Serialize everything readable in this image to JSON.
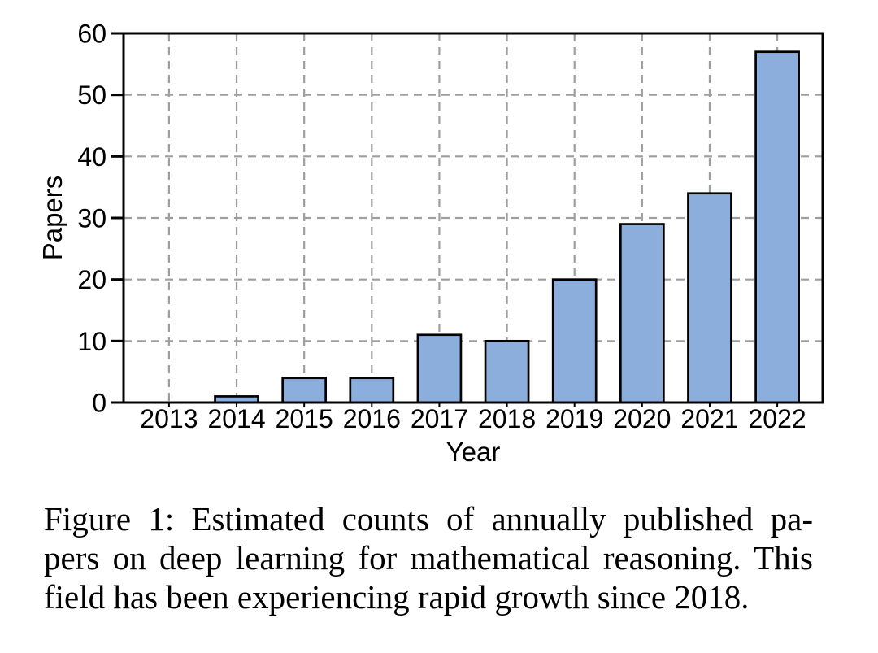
{
  "chart_data": {
    "type": "bar",
    "title": "",
    "categories": [
      "2013",
      "2014",
      "2015",
      "2016",
      "2017",
      "2018",
      "2019",
      "2020",
      "2021",
      "2022"
    ],
    "values": [
      0,
      1,
      4,
      4,
      11,
      10,
      20,
      29,
      34,
      57
    ],
    "xlabel": "Year",
    "ylabel": "Papers",
    "ylim": [
      0,
      60
    ],
    "yticks": [
      0,
      10,
      20,
      30,
      40,
      50,
      60
    ],
    "grid": "dashed gray gridlines, horizontal and vertical, drawn behind bars",
    "legend": "none",
    "bar_color": "#8CAEDC",
    "bar_edge_color": "#000000",
    "axis_color": "#000000",
    "grid_color": "#9E9E9E"
  },
  "figure": {
    "caption_lines": [
      "Figure 1: Estimated counts of annually published pa-",
      "pers on deep learning for mathematical reasoning. This",
      "field has been experiencing rapid growth since 2018."
    ],
    "caption_text": "Figure 1: Estimated counts of annually published papers on deep learning for mathematical reasoning. This field has been experiencing rapid growth since 2018."
  }
}
